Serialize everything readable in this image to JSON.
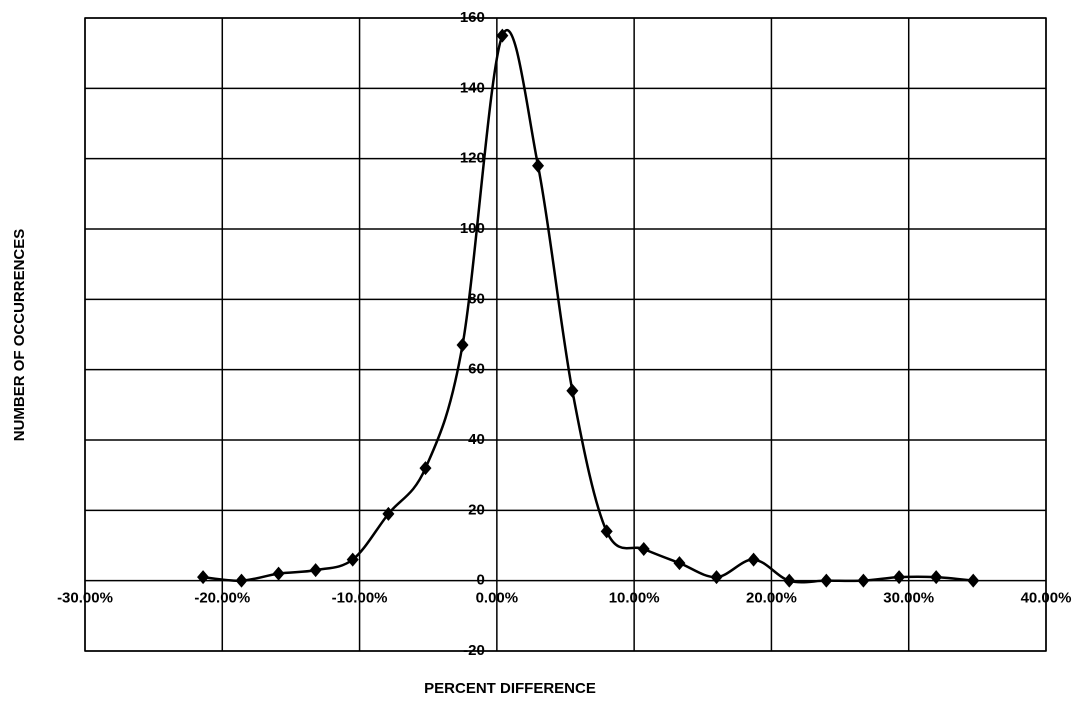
{
  "chart_data": {
    "type": "line",
    "xlabel": "PERCENT DIFFERENCE",
    "ylabel": "NUMBER OF OCCURRENCES",
    "x": [
      -21.4,
      -18.6,
      -15.9,
      -13.2,
      -10.5,
      -7.9,
      -5.2,
      -2.5,
      0.4,
      3.0,
      5.5,
      8.0,
      10.7,
      13.3,
      16.0,
      18.7,
      21.3,
      24.0,
      26.7,
      29.3,
      32.0,
      34.7
    ],
    "series": [
      {
        "color": "#000000",
        "values": [
          1,
          0,
          2,
          3,
          6,
          19,
          32,
          67,
          155,
          118,
          54,
          14,
          9,
          5,
          1,
          6,
          0,
          0,
          0,
          1,
          1,
          0
        ]
      }
    ],
    "xlim": [
      -30,
      40
    ],
    "xticks": [
      {
        "value": -30,
        "label": "-30.00%"
      },
      {
        "value": -20,
        "label": "-20.00%"
      },
      {
        "value": -10,
        "label": "-10.00%"
      },
      {
        "value": 0,
        "label": "0.00%"
      },
      {
        "value": 10,
        "label": "10.00%"
      },
      {
        "value": 20,
        "label": "20.00%"
      },
      {
        "value": 30,
        "label": "30.00%"
      },
      {
        "value": 40,
        "label": "40.00%"
      }
    ],
    "ylim": [
      -20,
      160
    ],
    "yticks": [
      -20,
      0,
      20,
      40,
      60,
      80,
      100,
      120,
      140,
      160
    ],
    "grid": true,
    "smooth": true
  }
}
